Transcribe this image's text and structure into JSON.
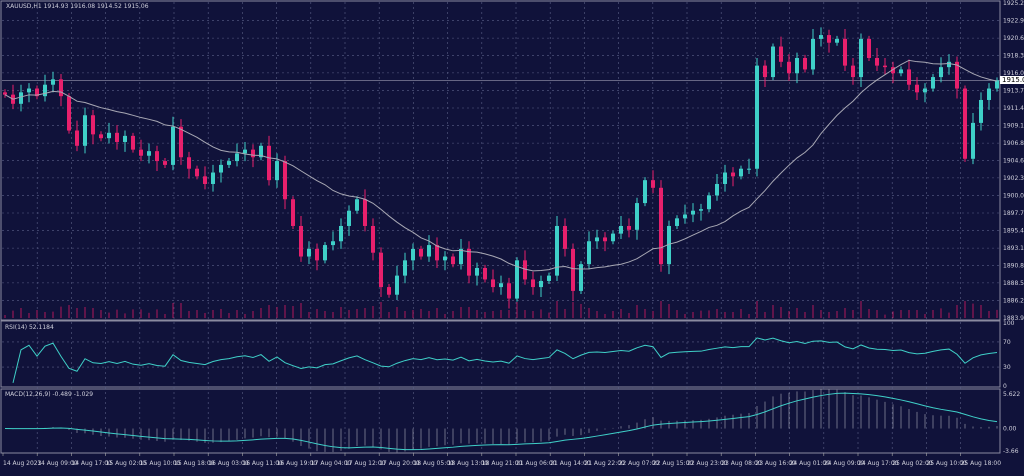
{
  "header": {
    "symbol": "XAUUSD,H1",
    "open": "1914.93",
    "high": "1916.08",
    "low": "1914.52",
    "close": "1915.06",
    "title": "XAUUSD,H1  1914.93 1916.08 1914.52 1915.06"
  },
  "colors": {
    "background": "#10123a",
    "bull": "#3fd0c8",
    "bear": "#e8206c",
    "ma": "#a8a8b4",
    "grid": "#5a5f86",
    "indicator": "#3fd0c8"
  },
  "price_axis": {
    "labels": [
      "1925.20",
      "1922.90",
      "1920.60",
      "1918.30",
      "1916.05",
      "1913.75",
      "1911.45",
      "1909.15",
      "1906.85",
      "1904.60",
      "1902.30",
      "1900.00",
      "1897.70",
      "1895.40",
      "1893.10",
      "1890.85",
      "1888.55",
      "1886.25",
      "1883.95"
    ],
    "current_price": "1915.06",
    "range": [
      1883.95,
      1925.2
    ]
  },
  "rsi": {
    "label": "RSI(14) 52.1184",
    "levels": [
      "100",
      "70",
      "30",
      "0"
    ]
  },
  "macd": {
    "label": "MACD(12,26,9) -0.489 -1.029",
    "levels": [
      "5.622",
      "0.00",
      "-3.66"
    ],
    "range": [
      -3.66,
      5.622
    ]
  },
  "time_axis": [
    "14 Aug 2023",
    "14 Aug 09:00",
    "14 Aug 17:00",
    "15 Aug 02:00",
    "15 Aug 10:00",
    "15 Aug 18:00",
    "16 Aug 03:00",
    "16 Aug 11:00",
    "16 Aug 19:00",
    "17 Aug 04:00",
    "17 Aug 12:00",
    "17 Aug 20:00",
    "18 Aug 05:00",
    "18 Aug 13:00",
    "18 Aug 21:00",
    "21 Aug 06:00",
    "21 Aug 14:00",
    "21 Aug 22:00",
    "22 Aug 07:00",
    "22 Aug 15:00",
    "22 Aug 23:00",
    "23 Aug 08:00",
    "23 Aug 16:00",
    "24 Aug 01:00",
    "24 Aug 09:00",
    "24 Aug 17:00",
    "25 Aug 02:00",
    "25 Aug 10:00",
    "25 Aug 18:00"
  ],
  "chart_data": {
    "type": "candlestick",
    "symbol": "XAUUSD",
    "timeframe": "H1",
    "ylim": [
      1883.95,
      1925.2
    ],
    "moving_average_period": 20,
    "closes": [
      1913.2,
      1912.0,
      1913.5,
      1914.0,
      1913.0,
      1914.5,
      1915.2,
      1913.0,
      1908.5,
      1906.5,
      1910.5,
      1908.0,
      1907.5,
      1908.2,
      1907.0,
      1907.8,
      1906.0,
      1905.2,
      1905.8,
      1904.5,
      1904.0,
      1909.0,
      1905.0,
      1903.5,
      1902.5,
      1901.5,
      1903.0,
      1904.0,
      1904.5,
      1905.5,
      1906.0,
      1905.0,
      1906.5,
      1902.0,
      1904.5,
      1899.5,
      1896.0,
      1892.0,
      1893.0,
      1891.5,
      1893.5,
      1894.0,
      1896.0,
      1898.0,
      1899.5,
      1896.0,
      1892.5,
      1888.0,
      1887.0,
      1889.5,
      1891.5,
      1893.0,
      1892.0,
      1893.5,
      1891.5,
      1892.0,
      1891.0,
      1893.0,
      1889.5,
      1890.5,
      1889.0,
      1888.0,
      1888.5,
      1886.5,
      1891.5,
      1889.0,
      1888.0,
      1888.8,
      1889.5,
      1896.0,
      1893.0,
      1887.5,
      1891.0,
      1894.0,
      1894.5,
      1894.0,
      1895.0,
      1896.0,
      1895.5,
      1899.0,
      1902.0,
      1901.0,
      1891.0,
      1896.0,
      1897.0,
      1897.5,
      1898.0,
      1898.2,
      1900.0,
      1901.5,
      1903.0,
      1902.5,
      1903.5,
      1903.5,
      1917.0,
      1915.5,
      1919.5,
      1917.5,
      1916.0,
      1918.0,
      1916.5,
      1920.5,
      1921.0,
      1920.0,
      1920.5,
      1917.0,
      1915.5,
      1920.5,
      1918.0,
      1917.0,
      1916.8,
      1916.0,
      1916.5,
      1914.5,
      1913.5,
      1914.0,
      1915.5,
      1916.8,
      1917.5,
      1914.0,
      1904.8,
      1909.5,
      1912.5,
      1914.0,
      1915.06
    ]
  }
}
